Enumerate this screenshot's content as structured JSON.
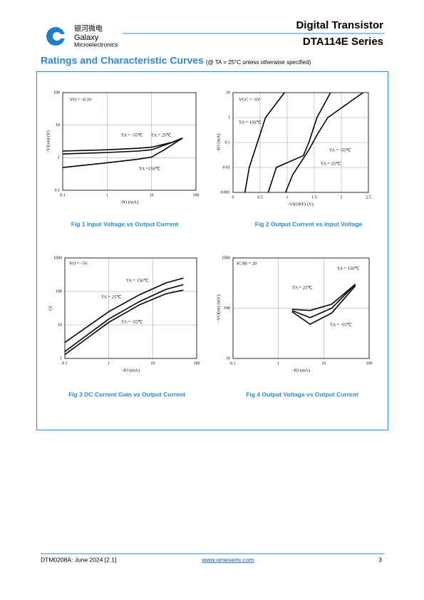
{
  "header": {
    "logo_cn": "银河微电",
    "logo_name": "Galaxy",
    "logo_sub": "Microelectronics",
    "title": "Digital Transistor",
    "series": "DTA114E Series"
  },
  "section": {
    "title": "Ratings and Characteristic Curves",
    "note": "(@ TA = 25°C unless otherwise specified)"
  },
  "footer": {
    "doc": "DTM0208A: June 2024 [2.1]",
    "url": "www.gmesemi.com",
    "page": "3"
  },
  "chart_data": [
    {
      "type": "line",
      "title": "Fig 1   Input Voltage vs Output Current",
      "annotation": "VO = -0.3V",
      "x_label": "-IO (mA)",
      "y_label": "-VI(on) (V)",
      "xlog": true,
      "ylog": true,
      "grid": true,
      "xlim": [
        0.1,
        100
      ],
      "ylim": [
        0.1,
        100
      ],
      "xticks": [
        0.1,
        1,
        10,
        100
      ],
      "yticks": [
        0.1,
        1,
        10,
        100
      ],
      "series": [
        {
          "name": "TA = -55℃",
          "color": "#000000",
          "x": [
            0.1,
            1,
            5,
            10,
            30,
            50
          ],
          "values": [
            1.6,
            1.75,
            1.95,
            2.1,
            3,
            4
          ]
        },
        {
          "name": "TA = 25℃",
          "color": "#000000",
          "x": [
            0.1,
            1,
            5,
            10,
            30,
            50
          ],
          "values": [
            1.3,
            1.45,
            1.6,
            1.75,
            3,
            4
          ]
        },
        {
          "name": "TA =150℃",
          "color": "#000000",
          "x": [
            0.1,
            1,
            5,
            10,
            20,
            50
          ],
          "values": [
            0.5,
            0.7,
            0.9,
            1.05,
            1.8,
            4
          ]
        }
      ]
    },
    {
      "type": "line",
      "title": "Fig 2   Output Current vs Input Voltage",
      "annotation": "VCC = -5V",
      "x_label": "-VI(OFF) (V)",
      "y_label": "-IO (mA)",
      "xlog": false,
      "ylog": true,
      "grid": true,
      "xlim": [
        0,
        2.5
      ],
      "ylim": [
        0.001,
        10
      ],
      "xticks": [
        0,
        0.5,
        1,
        1.5,
        2,
        2.5
      ],
      "yticks": [
        0.001,
        0.01,
        0.1,
        1,
        10
      ],
      "series": [
        {
          "name": "TA = 150℃",
          "color": "#000000",
          "x": [
            0.22,
            0.3,
            0.45,
            0.6,
            0.95
          ],
          "values": [
            0.001,
            0.01,
            0.1,
            1,
            10
          ]
        },
        {
          "name": "TA = -55℃",
          "color": "#000000",
          "x": [
            0.97,
            1.1,
            1.4,
            1.55,
            1.75,
            2.4
          ],
          "values": [
            0.001,
            0.005,
            0.05,
            0.2,
            1,
            10
          ]
        },
        {
          "name": "TA = 25℃",
          "color": "#000000",
          "x": [
            0.65,
            0.8,
            1.3,
            1.4,
            1.55,
            1.8
          ],
          "values": [
            0.001,
            0.01,
            0.03,
            0.1,
            1,
            10
          ]
        }
      ]
    },
    {
      "type": "line",
      "title": "Fig 3   DC Current Gain vs Output Current",
      "annotation": "VO = -5V",
      "x_label": "-IO (mA)",
      "y_label": "GI",
      "xlog": true,
      "ylog": true,
      "grid": true,
      "xlim": [
        0.1,
        100
      ],
      "ylim": [
        1,
        1000
      ],
      "xticks": [
        0.1,
        1,
        10,
        100
      ],
      "yticks": [
        1,
        10,
        100,
        1000
      ],
      "series": [
        {
          "name": "TA = 150℃",
          "color": "#000000",
          "x": [
            0.1,
            1,
            5,
            20,
            50
          ],
          "values": [
            3,
            25,
            80,
            180,
            250
          ]
        },
        {
          "name": "TA = 25℃",
          "color": "#000000",
          "x": [
            0.1,
            1,
            5,
            20,
            50
          ],
          "values": [
            1.6,
            15,
            50,
            115,
            160
          ]
        },
        {
          "name": "TA = -55℃",
          "color": "#000000",
          "x": [
            0.1,
            1,
            5,
            20,
            50
          ],
          "values": [
            1.3,
            12,
            40,
            85,
            110
          ]
        }
      ]
    },
    {
      "type": "line",
      "title": "Fig 4   Output Voltage vs Output Current",
      "annotation": "IC/IB = 20",
      "x_label": "-IO (mA)",
      "y_label": "-VO(on) (mV)",
      "xlog": true,
      "ylog": true,
      "grid": true,
      "xlim": [
        0.1,
        100
      ],
      "ylim": [
        10,
        1000
      ],
      "xticks": [
        0.1,
        1,
        10,
        100
      ],
      "yticks": [
        10,
        100,
        1000
      ],
      "series": [
        {
          "name": "TA = 150℃",
          "color": "#000000",
          "x": [
            2,
            5,
            15,
            50
          ],
          "values": [
            95,
            90,
            120,
            300
          ]
        },
        {
          "name": "TA = 25℃",
          "color": "#000000",
          "x": [
            2,
            5,
            15,
            50
          ],
          "values": [
            90,
            65,
            100,
            300
          ]
        },
        {
          "name": "TA = -55℃",
          "color": "#000000",
          "x": [
            2,
            5,
            15,
            50
          ],
          "values": [
            85,
            48,
            80,
            280
          ]
        }
      ]
    }
  ]
}
